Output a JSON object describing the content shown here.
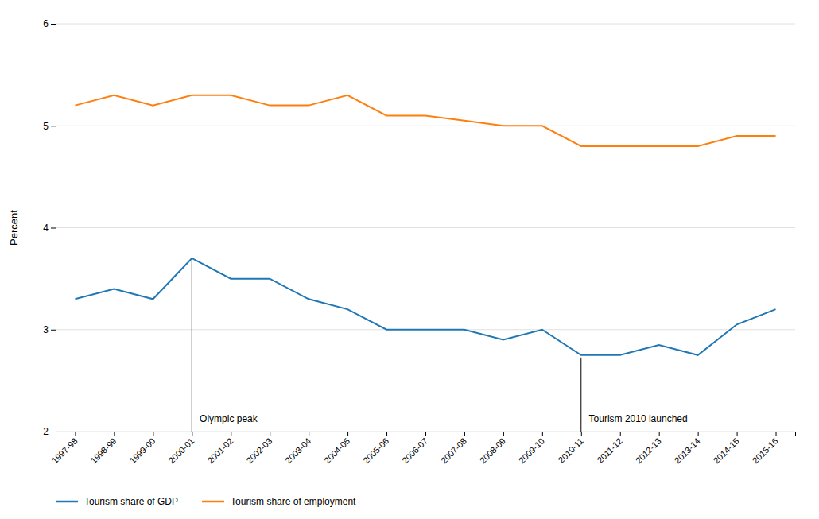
{
  "chart_data": {
    "type": "line",
    "y_label": "Percent",
    "categories": [
      "1997-98",
      "1998-99",
      "1999-00",
      "2000-01",
      "2001-02",
      "2002-03",
      "2003-04",
      "2004-05",
      "2005-06",
      "2006-07",
      "2007-08",
      "2008-09",
      "2009-10",
      "2010-11",
      "2011-12",
      "2012-13",
      "2013-14",
      "2014-15",
      "2015-16"
    ],
    "series": [
      {
        "name": "Tourism share of GDP",
        "values": [
          3.3,
          3.4,
          3.3,
          3.7,
          3.5,
          3.5,
          3.3,
          3.2,
          3.0,
          3.0,
          3.0,
          2.9,
          3.0,
          2.75,
          2.75,
          2.85,
          2.75,
          3.05,
          3.2
        ]
      },
      {
        "name": "Tourism share of employment",
        "values": [
          5.2,
          5.3,
          5.2,
          5.3,
          5.3,
          5.2,
          5.2,
          5.3,
          5.1,
          5.1,
          5.05,
          5.0,
          5.0,
          4.8,
          4.8,
          4.8,
          4.8,
          4.9,
          4.9
        ]
      }
    ],
    "annotations": [
      {
        "text": "Olympic peak",
        "x": "2000-01",
        "series": "Tourism share of GDP"
      },
      {
        "text": "Tourism 2010 launched",
        "x": "2010-11",
        "series": "Tourism share of GDP"
      }
    ],
    "ylim": [
      2.0,
      6.0
    ],
    "yticks": [
      2,
      3,
      4,
      5,
      6
    ],
    "grid": true,
    "legend": "bottom"
  }
}
